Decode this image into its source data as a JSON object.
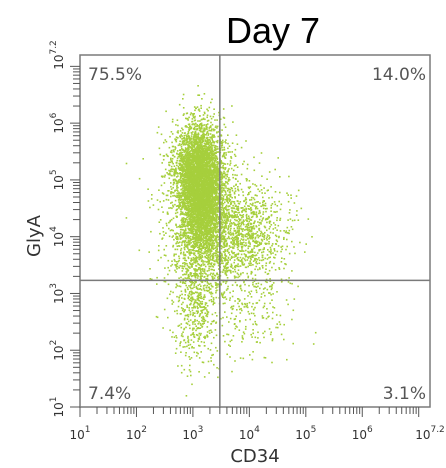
{
  "chart_data": {
    "type": "scatter",
    "title": "Day 7",
    "xlabel": "CD34",
    "ylabel": "GlyA",
    "x_scale": "log",
    "y_scale": "log",
    "xlim": [
      10,
      15848932
    ],
    "ylim": [
      10,
      15848932
    ],
    "x_tick_labels": [
      {
        "value": 10,
        "base": "10",
        "exp": "1"
      },
      {
        "value": 100,
        "base": "10",
        "exp": "2"
      },
      {
        "value": 1000,
        "base": "10",
        "exp": "3"
      },
      {
        "value": 10000,
        "base": "10",
        "exp": "4"
      },
      {
        "value": 100000,
        "base": "10",
        "exp": "5"
      },
      {
        "value": 1000000,
        "base": "10",
        "exp": "6"
      },
      {
        "value": 15848932,
        "base": "10",
        "exp": "7.2"
      }
    ],
    "y_tick_labels": [
      {
        "value": 10,
        "base": "10",
        "exp": "1"
      },
      {
        "value": 100,
        "base": "10",
        "exp": "2"
      },
      {
        "value": 1000,
        "base": "10",
        "exp": "3"
      },
      {
        "value": 10000,
        "base": "10",
        "exp": "4"
      },
      {
        "value": 100000,
        "base": "10",
        "exp": "5"
      },
      {
        "value": 1000000,
        "base": "10",
        "exp": "6"
      },
      {
        "value": 15848932,
        "base": "10",
        "exp": "7.2"
      }
    ],
    "gates": {
      "x": 3000,
      "y": 1700
    },
    "quadrant_labels": {
      "top_left": "75.5%",
      "top_right": "14.0%",
      "bottom_left": "7.4%",
      "bottom_right": "3.1%"
    },
    "point_color": "#a6cf3c",
    "point_count": 8000,
    "populations": [
      {
        "weight": 0.52,
        "log_x_mean": 3.15,
        "log_x_sd": 0.2,
        "log_y_mean": 4.75,
        "log_y_sd": 0.55
      },
      {
        "weight": 0.14,
        "log_x_mean": 3.05,
        "log_y_mean": 5.3,
        "log_x_sd": 0.22,
        "log_y_sd": 0.4
      },
      {
        "weight": 0.14,
        "log_x_mean": 3.85,
        "log_x_sd": 0.42,
        "log_y_mean": 4.05,
        "log_y_sd": 0.45
      },
      {
        "weight": 0.07,
        "log_x_mean": 3.05,
        "log_x_sd": 0.22,
        "log_y_mean": 2.85,
        "log_y_sd": 0.55
      },
      {
        "weight": 0.03,
        "log_x_mean": 3.95,
        "log_x_sd": 0.4,
        "log_y_mean": 2.8,
        "log_y_sd": 0.5
      },
      {
        "weight": 0.1,
        "log_x_mean": 3.25,
        "log_x_sd": 0.45,
        "log_y_mean": 4.3,
        "log_y_sd": 0.75
      }
    ]
  }
}
